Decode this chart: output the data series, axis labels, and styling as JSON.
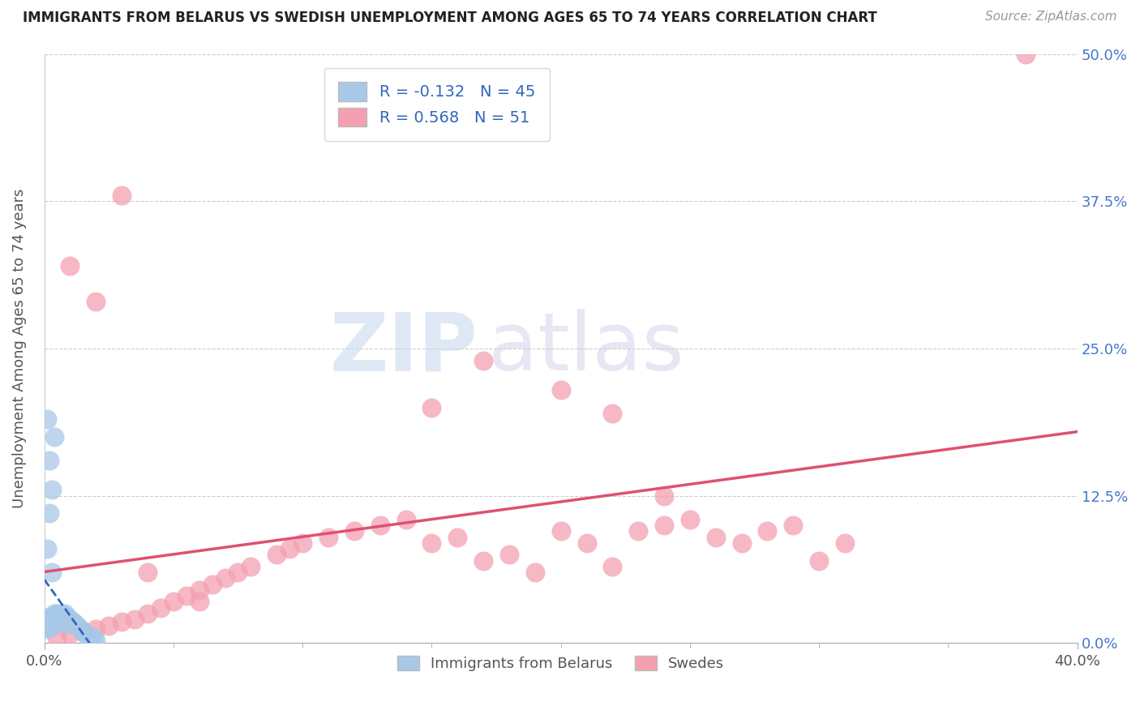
{
  "title": "IMMIGRANTS FROM BELARUS VS SWEDISH UNEMPLOYMENT AMONG AGES 65 TO 74 YEARS CORRELATION CHART",
  "source": "Source: ZipAtlas.com",
  "ylabel": "Unemployment Among Ages 65 to 74 years",
  "xlim": [
    0.0,
    0.4
  ],
  "ylim": [
    0.0,
    0.5
  ],
  "xtick_positions": [
    0.0,
    0.4
  ],
  "xtick_labels": [
    "0.0%",
    "40.0%"
  ],
  "ytick_labels": [
    "0.0%",
    "12.5%",
    "25.0%",
    "37.5%",
    "50.0%"
  ],
  "yticks": [
    0.0,
    0.125,
    0.25,
    0.375,
    0.5
  ],
  "blue_color": "#a8c8e8",
  "pink_color": "#f4a0b0",
  "blue_line_color": "#3366bb",
  "pink_line_color": "#e05070",
  "blue_R": -0.132,
  "blue_N": 45,
  "pink_R": 0.568,
  "pink_N": 51,
  "legend_labels": [
    "Immigrants from Belarus",
    "Swedes"
  ],
  "watermark_zip": "ZIP",
  "watermark_atlas": "atlas",
  "blue_scatter_x": [
    0.001,
    0.001,
    0.001,
    0.001,
    0.001,
    0.002,
    0.002,
    0.002,
    0.002,
    0.003,
    0.003,
    0.003,
    0.003,
    0.004,
    0.004,
    0.004,
    0.005,
    0.005,
    0.005,
    0.006,
    0.006,
    0.007,
    0.007,
    0.008,
    0.008,
    0.009,
    0.009,
    0.01,
    0.01,
    0.011,
    0.012,
    0.013,
    0.014,
    0.015,
    0.016,
    0.018,
    0.019,
    0.02,
    0.002,
    0.003,
    0.004,
    0.001,
    0.002,
    0.001,
    0.003
  ],
  "blue_scatter_y": [
    0.02,
    0.018,
    0.016,
    0.014,
    0.012,
    0.022,
    0.02,
    0.018,
    0.016,
    0.02,
    0.018,
    0.016,
    0.014,
    0.025,
    0.022,
    0.018,
    0.025,
    0.022,
    0.018,
    0.025,
    0.02,
    0.022,
    0.018,
    0.025,
    0.02,
    0.022,
    0.018,
    0.02,
    0.016,
    0.018,
    0.016,
    0.014,
    0.012,
    0.01,
    0.008,
    0.006,
    0.004,
    0.002,
    0.155,
    0.13,
    0.175,
    0.19,
    0.11,
    0.08,
    0.06
  ],
  "pink_scatter_x": [
    0.005,
    0.01,
    0.015,
    0.02,
    0.025,
    0.03,
    0.035,
    0.04,
    0.045,
    0.05,
    0.055,
    0.06,
    0.065,
    0.07,
    0.075,
    0.08,
    0.09,
    0.095,
    0.1,
    0.11,
    0.12,
    0.13,
    0.14,
    0.15,
    0.16,
    0.17,
    0.18,
    0.19,
    0.2,
    0.21,
    0.22,
    0.23,
    0.24,
    0.25,
    0.26,
    0.27,
    0.28,
    0.29,
    0.3,
    0.31,
    0.15,
    0.17,
    0.2,
    0.22,
    0.24,
    0.01,
    0.02,
    0.03,
    0.38,
    0.04,
    0.06
  ],
  "pink_scatter_y": [
    0.005,
    0.008,
    0.01,
    0.012,
    0.015,
    0.018,
    0.02,
    0.025,
    0.03,
    0.035,
    0.04,
    0.045,
    0.05,
    0.055,
    0.06,
    0.065,
    0.075,
    0.08,
    0.085,
    0.09,
    0.095,
    0.1,
    0.105,
    0.085,
    0.09,
    0.07,
    0.075,
    0.06,
    0.095,
    0.085,
    0.065,
    0.095,
    0.1,
    0.105,
    0.09,
    0.085,
    0.095,
    0.1,
    0.07,
    0.085,
    0.2,
    0.24,
    0.215,
    0.195,
    0.125,
    0.32,
    0.29,
    0.38,
    0.5,
    0.06,
    0.035
  ]
}
